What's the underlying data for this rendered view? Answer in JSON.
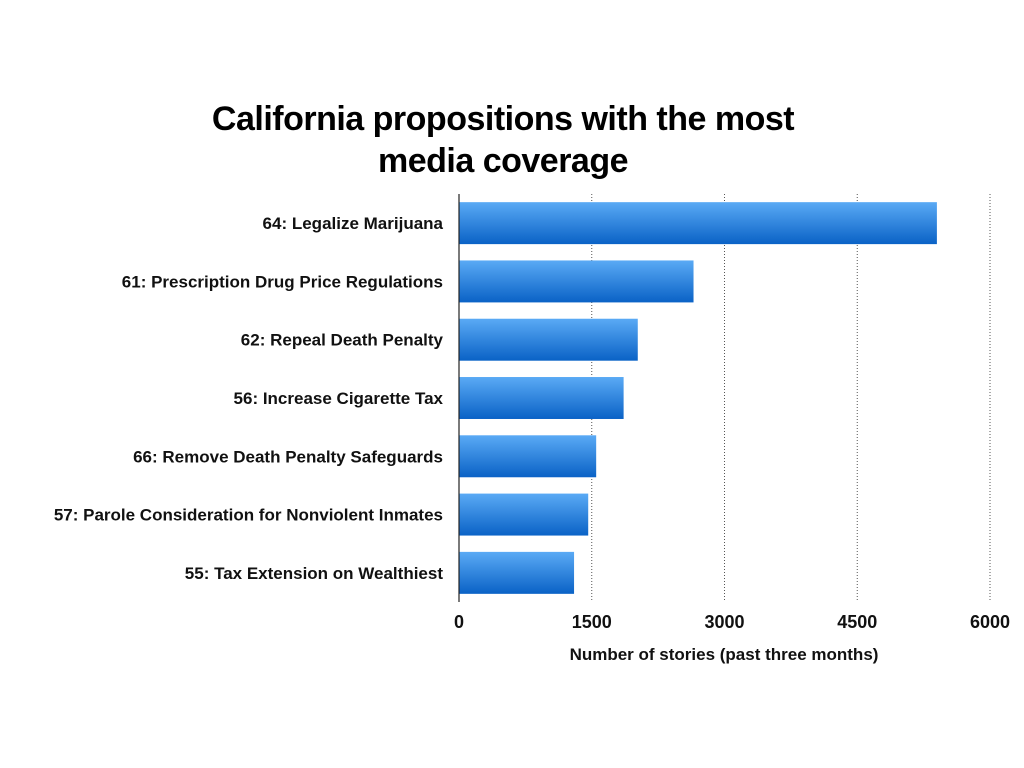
{
  "chart_data": {
    "type": "bar",
    "orientation": "horizontal",
    "title": "California propositions with the most media coverage",
    "xlabel": "Number of stories (past three months)",
    "ylabel": "",
    "categories": [
      "64: Legalize Marijuana",
      "61: Prescription Drug Price Regulations",
      "62: Repeal Death Penalty",
      "56: Increase Cigarette Tax",
      "66: Remove Death Penalty Safeguards",
      "57: Parole Consideration for Nonviolent Inmates",
      "55: Tax Extension on Wealthiest"
    ],
    "values": [
      5400,
      2650,
      2020,
      1860,
      1550,
      1460,
      1300
    ],
    "xlim": [
      0,
      6000
    ],
    "x_ticks": [
      "0",
      "1500",
      "3000",
      "4500",
      "6000"
    ],
    "grid": "vertical dotted",
    "legend": "none",
    "bar_color_top": "#5aaaf5",
    "bar_color_bottom": "#0a62c6"
  }
}
